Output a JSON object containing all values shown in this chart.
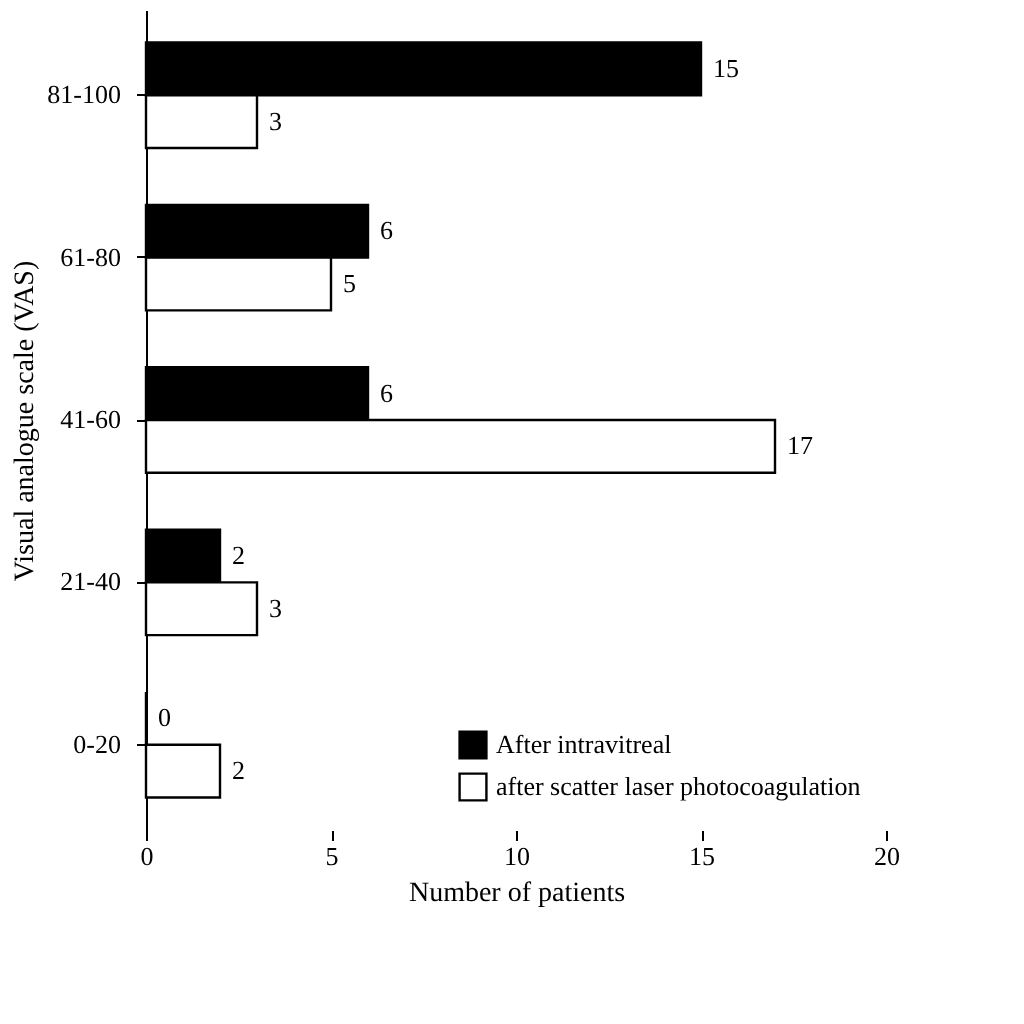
{
  "chart_data": {
    "type": "bar",
    "orientation": "horizontal",
    "xlabel": "Number of patients",
    "ylabel": "Visual analogue scale (VAS)",
    "categories": [
      "81-100",
      "61-80",
      "41-60",
      "21-40",
      "0-20"
    ],
    "series": [
      {
        "name": "After intravitreal",
        "color": "#000000",
        "values": [
          15,
          6,
          6,
          2,
          0
        ]
      },
      {
        "name": "after scatter laser photocoagulation",
        "color": "#ffffff",
        "values": [
          3,
          5,
          17,
          3,
          2
        ]
      }
    ],
    "xlim": [
      0,
      20
    ],
    "xticks": [
      0,
      5,
      10,
      15,
      20
    ],
    "grid": false,
    "legend": "bottom right",
    "data_labels": true
  }
}
